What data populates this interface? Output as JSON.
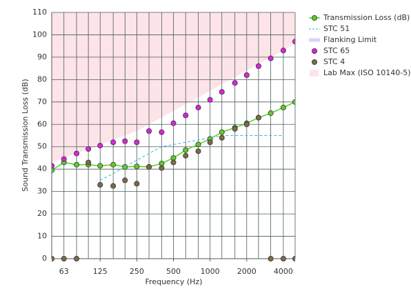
{
  "chart_data": {
    "type": "line",
    "x_label": "Frequency (Hz)",
    "y_label": "Sound Transmission Loss (dB)",
    "x": [
      50,
      63,
      80,
      100,
      125,
      160,
      200,
      250,
      315,
      400,
      500,
      630,
      800,
      1000,
      1250,
      1600,
      2000,
      2500,
      3150,
      4000,
      5000
    ],
    "xlim": [
      50,
      5000
    ],
    "x_scale": "log",
    "xticks": [
      63,
      125,
      250,
      500,
      1000,
      2000,
      4000
    ],
    "ylim": [
      0,
      110
    ],
    "yticks": [
      0,
      10,
      20,
      30,
      40,
      50,
      60,
      70,
      80,
      90,
      100,
      110
    ],
    "grid": true,
    "legend": "right",
    "series": [
      {
        "name": "Transmission Loss (dB)",
        "color": "#5ccc28",
        "style": "line-markers",
        "values": [
          39.5,
          43,
          42,
          42,
          41.5,
          42,
          41,
          41.2,
          41,
          42.5,
          45,
          48.5,
          51,
          53.5,
          56.5,
          58.5,
          60.5,
          63,
          65,
          67.5,
          70
        ]
      },
      {
        "name": "STC 51",
        "color": "#33b5e0",
        "style": "dashed",
        "values": [
          null,
          null,
          null,
          null,
          35,
          38,
          41,
          44,
          47,
          50,
          51,
          52,
          53,
          54,
          55,
          55,
          55,
          55,
          55,
          55,
          null
        ]
      },
      {
        "name": "Flanking Limit",
        "color": "#d9d0ff",
        "style": "band"
      },
      {
        "name": "STC 65",
        "color": "#dd22dd",
        "style": "markers",
        "values": [
          41.5,
          44.5,
          47,
          49,
          50.5,
          52,
          52.5,
          52,
          57,
          56.5,
          60.5,
          64,
          67.5,
          71,
          74.5,
          78.5,
          82,
          86,
          89.5,
          93,
          97
        ]
      },
      {
        "name": "STC 4",
        "color": "#7a6a48",
        "style": "markers",
        "values": [
          0,
          0,
          0,
          43,
          33,
          32.5,
          35,
          33.5,
          41,
          40.5,
          43,
          46,
          48,
          52,
          54,
          58,
          60,
          63,
          0,
          0,
          0
        ]
      },
      {
        "name": "Lab Max (ISO 10140-5)",
        "color": "#fde4e8",
        "style": "area",
        "values": [
          43,
          45,
          47,
          49,
          51,
          53,
          55,
          57,
          60,
          63,
          66,
          69,
          72,
          75,
          78,
          81,
          84,
          87,
          90,
          93,
          96
        ]
      }
    ]
  }
}
